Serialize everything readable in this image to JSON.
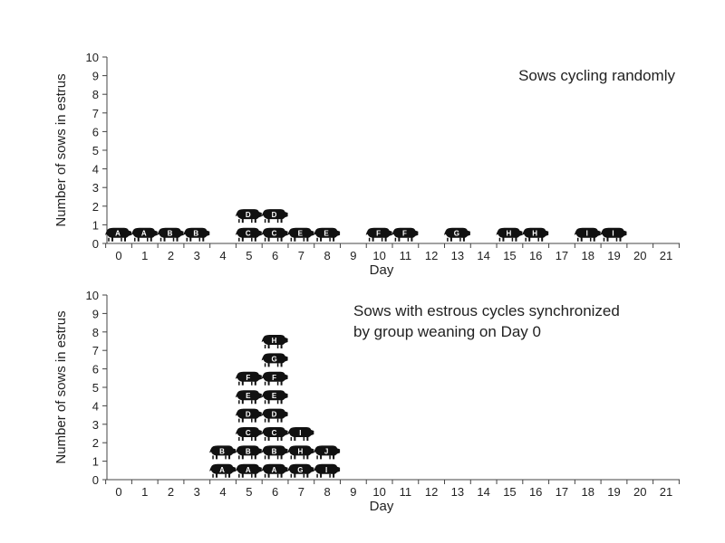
{
  "chart_data": [
    {
      "type": "scatter",
      "title": "Sows cycling randomly",
      "xlabel": "Day",
      "ylabel": "Number of sows in estrus",
      "xlim": [
        0,
        21
      ],
      "ylim": [
        0,
        10
      ],
      "x_ticks": [
        "0",
        "1",
        "2",
        "3",
        "4",
        "5",
        "6",
        "7",
        "8",
        "9",
        "10",
        "11",
        "12",
        "13",
        "14",
        "15",
        "16",
        "17",
        "18",
        "19",
        "20",
        "21"
      ],
      "y_ticks": [
        "0",
        "1",
        "2",
        "3",
        "4",
        "5",
        "6",
        "7",
        "8",
        "9",
        "10"
      ],
      "grid": false,
      "marker": "pig-icon",
      "points": [
        {
          "day": 0,
          "count": 1,
          "sow": "A"
        },
        {
          "day": 1,
          "count": 1,
          "sow": "A"
        },
        {
          "day": 2,
          "count": 1,
          "sow": "B"
        },
        {
          "day": 3,
          "count": 1,
          "sow": "B"
        },
        {
          "day": 5,
          "count": 1,
          "sow": "C"
        },
        {
          "day": 5,
          "count": 2,
          "sow": "D"
        },
        {
          "day": 6,
          "count": 1,
          "sow": "C"
        },
        {
          "day": 6,
          "count": 2,
          "sow": "D"
        },
        {
          "day": 7,
          "count": 1,
          "sow": "E"
        },
        {
          "day": 8,
          "count": 1,
          "sow": "E"
        },
        {
          "day": 10,
          "count": 1,
          "sow": "F"
        },
        {
          "day": 11,
          "count": 1,
          "sow": "F"
        },
        {
          "day": 13,
          "count": 1,
          "sow": "G"
        },
        {
          "day": 15,
          "count": 1,
          "sow": "H"
        },
        {
          "day": 16,
          "count": 1,
          "sow": "H"
        },
        {
          "day": 18,
          "count": 1,
          "sow": "I"
        },
        {
          "day": 19,
          "count": 1,
          "sow": "I"
        }
      ]
    },
    {
      "type": "scatter",
      "title": "Sows with estrous cycles synchronized",
      "title_line2": "by group weaning on Day 0",
      "xlabel": "Day",
      "ylabel": "Number of sows in estrus",
      "xlim": [
        0,
        21
      ],
      "ylim": [
        0,
        10
      ],
      "x_ticks": [
        "0",
        "1",
        "2",
        "3",
        "4",
        "5",
        "6",
        "7",
        "8",
        "9",
        "10",
        "11",
        "12",
        "13",
        "14",
        "15",
        "16",
        "17",
        "18",
        "19",
        "20",
        "21"
      ],
      "y_ticks": [
        "0",
        "1",
        "2",
        "3",
        "4",
        "5",
        "6",
        "7",
        "8",
        "9",
        "10"
      ],
      "grid": false,
      "marker": "pig-icon",
      "points": [
        {
          "day": 4,
          "count": 1,
          "sow": "A"
        },
        {
          "day": 4,
          "count": 2,
          "sow": "B"
        },
        {
          "day": 5,
          "count": 1,
          "sow": "A"
        },
        {
          "day": 5,
          "count": 2,
          "sow": "B"
        },
        {
          "day": 5,
          "count": 3,
          "sow": "C"
        },
        {
          "day": 5,
          "count": 4,
          "sow": "D"
        },
        {
          "day": 5,
          "count": 5,
          "sow": "E"
        },
        {
          "day": 5,
          "count": 6,
          "sow": "F"
        },
        {
          "day": 6,
          "count": 1,
          "sow": "A"
        },
        {
          "day": 6,
          "count": 2,
          "sow": "B"
        },
        {
          "day": 6,
          "count": 3,
          "sow": "C"
        },
        {
          "day": 6,
          "count": 4,
          "sow": "D"
        },
        {
          "day": 6,
          "count": 5,
          "sow": "E"
        },
        {
          "day": 6,
          "count": 6,
          "sow": "F"
        },
        {
          "day": 6,
          "count": 7,
          "sow": "G"
        },
        {
          "day": 6,
          "count": 8,
          "sow": "H"
        },
        {
          "day": 7,
          "count": 1,
          "sow": "G"
        },
        {
          "day": 7,
          "count": 2,
          "sow": "H"
        },
        {
          "day": 7,
          "count": 3,
          "sow": "I"
        },
        {
          "day": 8,
          "count": 1,
          "sow": "I"
        },
        {
          "day": 8,
          "count": 2,
          "sow": "J"
        }
      ]
    }
  ]
}
